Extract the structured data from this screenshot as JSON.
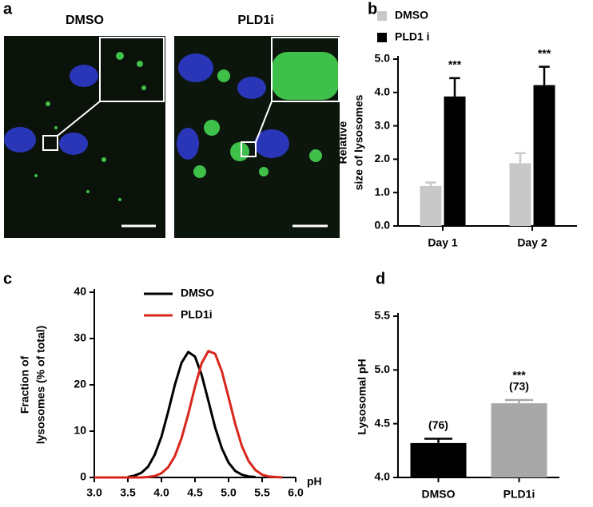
{
  "images": {
    "label": "a",
    "titles": [
      "DMSO",
      "PLD1i"
    ]
  },
  "chart_data": [
    {
      "type": "bar",
      "label": "b",
      "ylabel": [
        "Relative",
        "size of lysosomes"
      ],
      "categories": [
        "Day 1",
        "Day 2"
      ],
      "series": [
        {
          "name": "DMSO",
          "color": "#c8c8c8",
          "values": [
            1.2,
            1.88
          ],
          "errors": [
            0.1,
            0.3
          ]
        },
        {
          "name": "PLD1 i",
          "color": "#000000",
          "values": [
            3.88,
            4.22
          ],
          "errors": [
            0.55,
            0.55
          ],
          "annotations": [
            "***",
            "***"
          ]
        }
      ],
      "ylim": [
        0,
        5
      ],
      "yticks": [
        {
          "value": 0,
          "label": "0.0"
        },
        {
          "value": 1,
          "label": "1.0"
        },
        {
          "value": 2,
          "label": "2.0"
        },
        {
          "value": 3,
          "label": "3.0"
        },
        {
          "value": 4,
          "label": "4.0"
        },
        {
          "value": 5,
          "label": "5.0"
        }
      ],
      "legend": "top-left"
    },
    {
      "type": "line",
      "label": "c",
      "ylabel": [
        "Fraction of",
        "lysosomes (% of total)"
      ],
      "xlabel": "pH",
      "x": [
        3.0,
        3.1,
        3.2,
        3.3,
        3.4,
        3.5,
        3.6,
        3.7,
        3.8,
        3.9,
        4.0,
        4.1,
        4.2,
        4.3,
        4.4,
        4.5,
        4.6,
        4.7,
        4.8,
        4.9,
        5.0,
        5.1,
        5.2,
        5.3,
        5.4,
        5.5,
        5.6,
        5.7,
        5.8
      ],
      "series": [
        {
          "name": "DMSO",
          "color": "#000000",
          "values": [
            null,
            null,
            null,
            null,
            null,
            0.1,
            0.4,
            1.0,
            2.3,
            4.9,
            8.8,
            14.2,
            20.0,
            24.8,
            27.1,
            26.1,
            22.1,
            16.5,
            10.8,
            6.3,
            3.2,
            1.4,
            0.6,
            0.2,
            0.1,
            null,
            null,
            null,
            null
          ]
        },
        {
          "name": "PLD1i",
          "color": "#d9261c",
          "values": [
            0,
            0,
            0,
            0,
            0,
            0,
            0,
            0,
            0.1,
            0.3,
            0.9,
            2.2,
            4.6,
            8.5,
            13.7,
            19.6,
            24.7,
            27.3,
            26.7,
            22.9,
            17.3,
            11.5,
            6.7,
            3.5,
            1.6,
            0.6,
            0.2,
            0.1,
            0
          ]
        }
      ],
      "xlim": [
        3.0,
        6.0
      ],
      "xticks": [
        {
          "value": 3,
          "label": "3.0"
        },
        3.5,
        {
          "value": 4,
          "label": "4.0"
        },
        4.5,
        {
          "value": 5,
          "label": "5.0"
        },
        5.5,
        {
          "value": 6,
          "label": "6.0"
        }
      ],
      "ylim": [
        0,
        40
      ],
      "yticks": [
        0,
        10,
        20,
        30,
        40
      ],
      "legend": "top-left"
    },
    {
      "type": "bar",
      "label": "d",
      "ylabel": [
        "Lysosomal pH"
      ],
      "categories": [
        "DMSO",
        "PLD1i"
      ],
      "series": [
        {
          "colors": [
            "#000000",
            "#a8a8a8"
          ],
          "values": [
            4.32,
            4.69
          ],
          "errors": [
            0.04,
            0.03
          ],
          "annotations": [
            "(76)",
            "(73)"
          ],
          "stars": [
            null,
            "***"
          ]
        }
      ],
      "ylim": [
        4.0,
        5.5
      ],
      "yticks": [
        {
          "value": 4,
          "label": "4.0"
        },
        4.5,
        {
          "value": 5,
          "label": "5.0"
        },
        5.5
      ]
    }
  ]
}
